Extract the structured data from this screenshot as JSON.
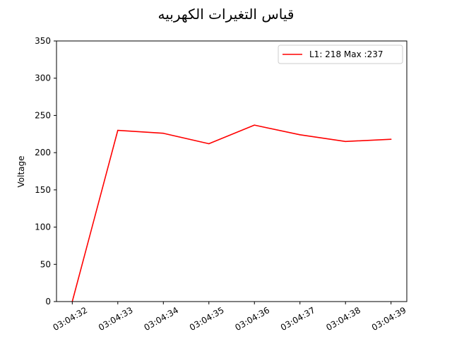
{
  "chart_data": {
    "type": "line",
    "title": "قياس التغيرات الكهربيه",
    "xlabel": "",
    "ylabel": "Voltage",
    "categories": [
      "03:04:32",
      "03:04:33",
      "03:04:34",
      "03:04:35",
      "03:04:36",
      "03:04:37",
      "03:04:38",
      "03:04:39"
    ],
    "series": [
      {
        "name": "L1: 218  Max :237",
        "color": "#ff0000",
        "values": [
          0,
          230,
          226,
          212,
          237,
          224,
          215,
          218
        ]
      }
    ],
    "ylim": [
      0,
      350
    ],
    "yticks": [
      0,
      50,
      100,
      150,
      200,
      250,
      300,
      350
    ],
    "grid": false,
    "legend_position": "top-right"
  }
}
